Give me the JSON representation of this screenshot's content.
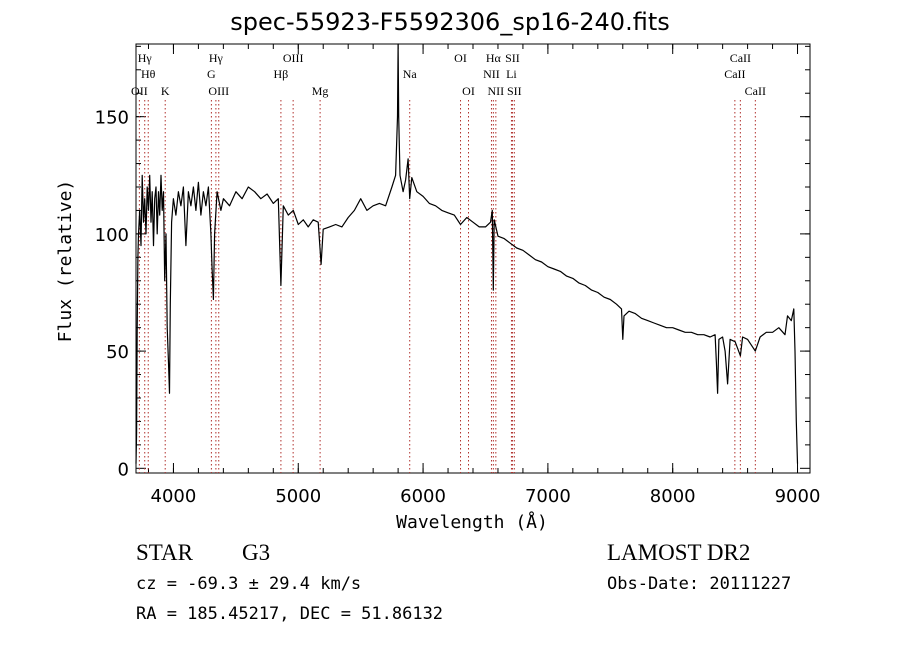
{
  "chart_data": {
    "type": "line",
    "title": "spec-55923-F5592306_sp16-240.fits",
    "xlabel": "Wavelength (Å)",
    "ylabel": "Flux (relative)",
    "xlim": [
      3700,
      9100
    ],
    "ylim": [
      -2,
      181
    ],
    "xticks": [
      4000,
      5000,
      6000,
      7000,
      8000,
      9000
    ],
    "yticks": [
      0,
      50,
      100,
      150
    ],
    "series": [
      {
        "color": "#000000",
        "points": [
          [
            3700,
            2
          ],
          [
            3705,
            15
          ],
          [
            3710,
            60
          ],
          [
            3715,
            90
          ],
          [
            3720,
            100
          ],
          [
            3730,
            110
          ],
          [
            3740,
            95
          ],
          [
            3750,
            125
          ],
          [
            3760,
            105
          ],
          [
            3770,
            115
          ],
          [
            3780,
            100
          ],
          [
            3790,
            120
          ],
          [
            3800,
            110
          ],
          [
            3810,
            125
          ],
          [
            3820,
            105
          ],
          [
            3830,
            118
          ],
          [
            3840,
            95
          ],
          [
            3850,
            115
          ],
          [
            3860,
            120
          ],
          [
            3870,
            100
          ],
          [
            3880,
            118
          ],
          [
            3890,
            108
          ],
          [
            3900,
            125
          ],
          [
            3910,
            110
          ],
          [
            3920,
            118
          ],
          [
            3930,
            80
          ],
          [
            3940,
            100
          ],
          [
            3950,
            60
          ],
          [
            3960,
            45
          ],
          [
            3968,
            32
          ],
          [
            3975,
            70
          ],
          [
            3985,
            105
          ],
          [
            4000,
            115
          ],
          [
            4020,
            108
          ],
          [
            4040,
            118
          ],
          [
            4060,
            112
          ],
          [
            4080,
            120
          ],
          [
            4100,
            95
          ],
          [
            4120,
            118
          ],
          [
            4140,
            112
          ],
          [
            4160,
            120
          ],
          [
            4180,
            110
          ],
          [
            4200,
            122
          ],
          [
            4220,
            108
          ],
          [
            4240,
            118
          ],
          [
            4260,
            112
          ],
          [
            4280,
            120
          ],
          [
            4300,
            100
          ],
          [
            4310,
            85
          ],
          [
            4320,
            72
          ],
          [
            4330,
            100
          ],
          [
            4350,
            118
          ],
          [
            4380,
            110
          ],
          [
            4400,
            115
          ],
          [
            4450,
            112
          ],
          [
            4500,
            118
          ],
          [
            4550,
            115
          ],
          [
            4600,
            120
          ],
          [
            4650,
            118
          ],
          [
            4700,
            115
          ],
          [
            4750,
            117
          ],
          [
            4800,
            113
          ],
          [
            4840,
            115
          ],
          [
            4861,
            78
          ],
          [
            4880,
            112
          ],
          [
            4920,
            108
          ],
          [
            4960,
            110
          ],
          [
            5000,
            104
          ],
          [
            5040,
            106
          ],
          [
            5080,
            103
          ],
          [
            5120,
            106
          ],
          [
            5160,
            105
          ],
          [
            5183,
            87
          ],
          [
            5200,
            102
          ],
          [
            5250,
            103
          ],
          [
            5300,
            104
          ],
          [
            5350,
            103
          ],
          [
            5400,
            107
          ],
          [
            5450,
            110
          ],
          [
            5500,
            115
          ],
          [
            5550,
            110
          ],
          [
            5600,
            112
          ],
          [
            5650,
            113
          ],
          [
            5700,
            112
          ],
          [
            5750,
            120
          ],
          [
            5780,
            125
          ],
          [
            5795,
            150
          ],
          [
            5800,
            181
          ],
          [
            5805,
            150
          ],
          [
            5815,
            125
          ],
          [
            5840,
            118
          ],
          [
            5860,
            123
          ],
          [
            5880,
            132
          ],
          [
            5893,
            115
          ],
          [
            5910,
            124
          ],
          [
            5950,
            118
          ],
          [
            6000,
            116
          ],
          [
            6050,
            113
          ],
          [
            6100,
            112
          ],
          [
            6150,
            110
          ],
          [
            6200,
            109
          ],
          [
            6250,
            108
          ],
          [
            6300,
            104
          ],
          [
            6350,
            107
          ],
          [
            6400,
            105
          ],
          [
            6450,
            103
          ],
          [
            6500,
            103
          ],
          [
            6540,
            105
          ],
          [
            6555,
            110
          ],
          [
            6563,
            76
          ],
          [
            6570,
            106
          ],
          [
            6600,
            99
          ],
          [
            6650,
            98
          ],
          [
            6700,
            96
          ],
          [
            6750,
            94
          ],
          [
            6800,
            93
          ],
          [
            6850,
            91
          ],
          [
            6900,
            89
          ],
          [
            6950,
            88
          ],
          [
            7000,
            86
          ],
          [
            7050,
            85
          ],
          [
            7100,
            84
          ],
          [
            7150,
            82
          ],
          [
            7200,
            81
          ],
          [
            7250,
            79
          ],
          [
            7300,
            78
          ],
          [
            7350,
            76
          ],
          [
            7400,
            75
          ],
          [
            7450,
            73
          ],
          [
            7500,
            72
          ],
          [
            7550,
            70
          ],
          [
            7590,
            68
          ],
          [
            7600,
            55
          ],
          [
            7610,
            65
          ],
          [
            7650,
            67
          ],
          [
            7700,
            66
          ],
          [
            7750,
            64
          ],
          [
            7800,
            63
          ],
          [
            7850,
            62
          ],
          [
            7900,
            61
          ],
          [
            7950,
            60
          ],
          [
            8000,
            60
          ],
          [
            8050,
            59
          ],
          [
            8100,
            58
          ],
          [
            8150,
            58
          ],
          [
            8200,
            57
          ],
          [
            8250,
            57
          ],
          [
            8300,
            56
          ],
          [
            8340,
            57
          ],
          [
            8350,
            45
          ],
          [
            8360,
            32
          ],
          [
            8370,
            55
          ],
          [
            8400,
            56
          ],
          [
            8420,
            50
          ],
          [
            8440,
            36
          ],
          [
            8460,
            55
          ],
          [
            8500,
            54
          ],
          [
            8542,
            48
          ],
          [
            8560,
            56
          ],
          [
            8600,
            55
          ],
          [
            8662,
            50
          ],
          [
            8700,
            56
          ],
          [
            8750,
            58
          ],
          [
            8800,
            58
          ],
          [
            8850,
            60
          ],
          [
            8900,
            57
          ],
          [
            8920,
            65
          ],
          [
            8950,
            63
          ],
          [
            8970,
            68
          ],
          [
            8980,
            50
          ],
          [
            8990,
            20
          ],
          [
            9000,
            2
          ]
        ]
      }
    ],
    "lines": [
      {
        "label": "Hγ",
        "x": 3770,
        "row": 1
      },
      {
        "label": "Hθ",
        "x": 3798,
        "row": 2
      },
      {
        "label": "OII",
        "x": 3727,
        "row": 3
      },
      {
        "label": "K",
        "x": 3934,
        "row": 3
      },
      {
        "label": "Hγ",
        "x": 4340,
        "row": 1
      },
      {
        "label": "G",
        "x": 4304,
        "row": 2
      },
      {
        "label": "OIII",
        "x": 4363,
        "row": 3
      },
      {
        "label": "OIII",
        "x": 4959,
        "row": 1
      },
      {
        "label": "Hβ",
        "x": 4861,
        "row": 2
      },
      {
        "label": "Mg",
        "x": 5175,
        "row": 3
      },
      {
        "label": "Na",
        "x": 5893,
        "row": 2
      },
      {
        "label": "OI",
        "x": 6300,
        "row": 1
      },
      {
        "label": "OI",
        "x": 6364,
        "row": 3
      },
      {
        "label": "Hα",
        "x": 6563,
        "row": 1
      },
      {
        "label": "SII",
        "x": 6716,
        "row": 1
      },
      {
        "label": "NII",
        "x": 6548,
        "row": 2
      },
      {
        "label": "Li",
        "x": 6708,
        "row": 2
      },
      {
        "label": "NII",
        "x": 6583,
        "row": 3
      },
      {
        "label": "SII",
        "x": 6731,
        "row": 3
      },
      {
        "label": "CaII",
        "x": 8542,
        "row": 1
      },
      {
        "label": "CaII",
        "x": 8498,
        "row": 2
      },
      {
        "label": "CaII",
        "x": 8662,
        "row": 3
      }
    ]
  },
  "info": {
    "object_class": "STAR",
    "subclass": "G3",
    "survey": "LAMOST DR2",
    "redshift": "cz = -69.3 ± 29.4 km/s",
    "obs_date": "Obs-Date: 20111227",
    "coords": "RA = 185.45217, DEC =  51.86132"
  }
}
